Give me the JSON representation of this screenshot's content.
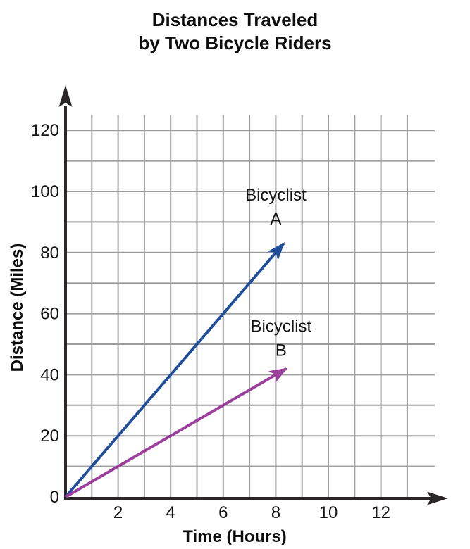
{
  "title": {
    "line1": "Distances Traveled",
    "line2": "by Two Bicycle Riders"
  },
  "chart_data": {
    "type": "line",
    "title": "Distances Traveled by Two Bicycle Riders",
    "xlabel": "Time (Hours)",
    "ylabel": "Distance (Miles)",
    "xlim": [
      0,
      14
    ],
    "ylim": [
      0,
      130
    ],
    "x_ticks": [
      2,
      4,
      6,
      8,
      10,
      12
    ],
    "y_ticks": [
      0,
      20,
      40,
      60,
      80,
      100,
      120
    ],
    "grid": {
      "on": true,
      "x_step_hours": 1,
      "y_step_miles": 10,
      "x_gridline_count": 13,
      "color": "#9d9d9d"
    },
    "axis_color": "#2b2627",
    "text_color": "#141414",
    "legend_position": "none",
    "series": [
      {
        "name": "Bicyclist A",
        "color": "#1f4e9b",
        "points": [
          [
            0,
            0
          ],
          [
            8,
            80
          ]
        ],
        "arrow_tip": [
          8.3,
          83
        ]
      },
      {
        "name": "Bicyclist B",
        "color": "#9c3e9c",
        "points": [
          [
            0,
            0
          ],
          [
            8,
            40
          ]
        ],
        "arrow_tip": [
          8.4,
          42
        ]
      }
    ],
    "annotations": [
      {
        "lines": [
          "Bicyclist",
          "A"
        ],
        "x": 8.0,
        "y": 97,
        "series": "Bicyclist A"
      },
      {
        "lines": [
          "Bicyclist",
          "B"
        ],
        "x": 8.2,
        "y": 54,
        "series": "Bicyclist B"
      }
    ]
  }
}
